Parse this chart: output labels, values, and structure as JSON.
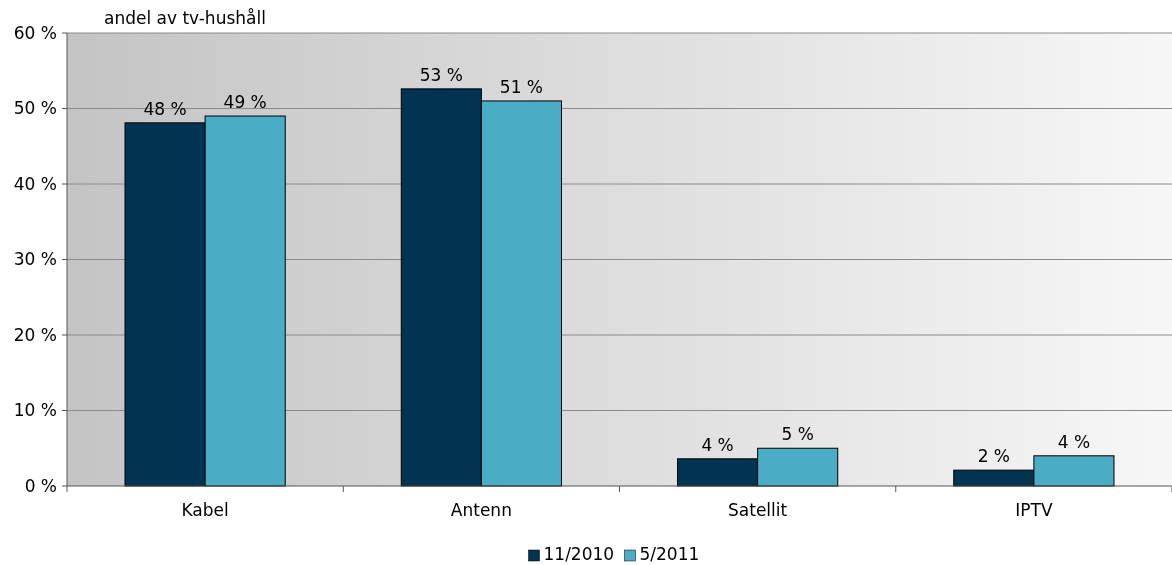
{
  "chart_data": {
    "type": "bar",
    "ylabel": "andel av tv-hushåll",
    "categories": [
      "Kabel",
      "Antenn",
      "Satellit",
      "IPTV"
    ],
    "series": [
      {
        "name": "11/2010",
        "color": "#003452",
        "values": [
          48.1,
          52.6,
          3.6,
          2.1
        ],
        "value_labels": [
          "48 %",
          "53 %",
          "4 %",
          "2 %"
        ]
      },
      {
        "name": "5/2011",
        "color": "#4bacc6",
        "values": [
          49,
          51,
          5,
          4
        ],
        "value_labels": [
          "49 %",
          "51 %",
          "5 %",
          "4 %"
        ]
      }
    ],
    "ylim": [
      0,
      60
    ],
    "yticks": [
      {
        "value": 0,
        "label": "0 %"
      },
      {
        "value": 10,
        "label": "10 %"
      },
      {
        "value": 20,
        "label": "20 %"
      },
      {
        "value": 30,
        "label": "30 %"
      },
      {
        "value": 40,
        "label": "40 %"
      },
      {
        "value": 50,
        "label": "50 %"
      },
      {
        "value": 60,
        "label": "60 %"
      }
    ],
    "grid": "y",
    "legend": "bottom"
  }
}
